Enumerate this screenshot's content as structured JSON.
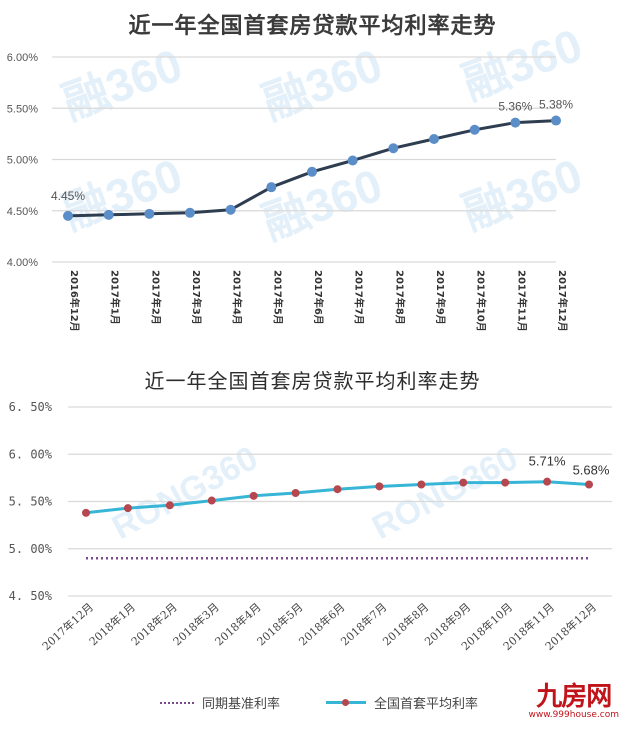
{
  "chart_data": [
    {
      "type": "line",
      "title": "近一年全国首套房贷款平均利率走势",
      "xlabel": "",
      "ylabel": "",
      "ylim": [
        4.0,
        6.0
      ],
      "yticks": [
        "4.00%",
        "4.50%",
        "5.00%",
        "5.50%",
        "6.00%"
      ],
      "grid": true,
      "legend": "none",
      "categories": [
        "2016年12月",
        "2017年1月",
        "2017年2月",
        "2017年3月",
        "2017年4月",
        "2017年5月",
        "2017年6月",
        "2017年7月",
        "2017年8月",
        "2017年9月",
        "2017年10月",
        "2017年11月",
        "2017年12月"
      ],
      "series": [
        {
          "name": "全国首套房贷款平均利率",
          "color": "#2e3d50",
          "marker_color": "#5b8ec8",
          "values": [
            4.45,
            4.46,
            4.47,
            4.48,
            4.51,
            4.73,
            4.88,
            4.99,
            5.11,
            5.2,
            5.29,
            5.36,
            5.38
          ]
        }
      ],
      "annotations": [
        {
          "index": 0,
          "text": "4.45%"
        },
        {
          "index": 11,
          "text": "5.36%"
        },
        {
          "index": 12,
          "text": "5.38%"
        }
      ],
      "watermark": "融360 Rong360.com"
    },
    {
      "type": "line",
      "title": "近一年全国首套房贷款平均利率走势",
      "xlabel": "",
      "ylabel": "",
      "ylim": [
        4.5,
        6.5
      ],
      "yticks": [
        "4.50%",
        "5.00%",
        "5.50%",
        "6.00%",
        "6.50%"
      ],
      "grid": true,
      "legend": "bottom",
      "categories": [
        "2017年12月",
        "2018年1月",
        "2018年2月",
        "2018年3月",
        "2018年4月",
        "2018年5月",
        "2018年6月",
        "2018年7月",
        "2018年8月",
        "2018年9月",
        "2018年10月",
        "2018年11月",
        "2018年12月"
      ],
      "series": [
        {
          "name": "同期基准利率",
          "color": "#7a4a8a",
          "style": "dotted",
          "values": [
            4.9,
            4.9,
            4.9,
            4.9,
            4.9,
            4.9,
            4.9,
            4.9,
            4.9,
            4.9,
            4.9,
            4.9,
            4.9
          ]
        },
        {
          "name": "全国首套平均利率",
          "color": "#36b5d6",
          "marker_color": "#b5474f",
          "values": [
            5.38,
            5.43,
            5.46,
            5.51,
            5.56,
            5.59,
            5.63,
            5.66,
            5.68,
            5.7,
            5.7,
            5.71,
            5.68
          ]
        }
      ],
      "annotations": [
        {
          "index": 11,
          "text": "5.71%"
        },
        {
          "index": 12,
          "text": "5.68%"
        }
      ],
      "watermark": "RONG360"
    }
  ],
  "chart1": {
    "title": "近一年全国首套房贷款平均利率走势",
    "yticks": [
      "6.00%",
      "5.50%",
      "5.00%",
      "4.50%",
      "4.00%"
    ],
    "labels": [
      "4.45%",
      "5.36%",
      "5.38%"
    ]
  },
  "chart2": {
    "title": "近一年全国首套房贷款平均利率走势",
    "yticks": [
      "6.50%",
      "6.00%",
      "5.50%",
      "5.00%",
      "4.50%"
    ],
    "labels": [
      "5.71%",
      "5.68%"
    ],
    "legend": {
      "baseline_label": "同期基准利率",
      "avg_label": "全国首套平均利率"
    }
  },
  "logo": {
    "name": "九房网",
    "url": "www.999house.com",
    "color": "#c0141b"
  }
}
